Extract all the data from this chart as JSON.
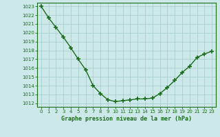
{
  "x": [
    0,
    1,
    2,
    3,
    4,
    5,
    6,
    7,
    8,
    9,
    10,
    11,
    12,
    13,
    14,
    15,
    16,
    17,
    18,
    19,
    20,
    21,
    22,
    23
  ],
  "y": [
    1023.0,
    1021.7,
    1020.6,
    1019.5,
    1018.3,
    1017.0,
    1015.8,
    1014.0,
    1013.1,
    1012.4,
    1012.2,
    1012.3,
    1012.4,
    1012.5,
    1012.5,
    1012.6,
    1013.1,
    1013.8,
    1014.6,
    1015.5,
    1016.2,
    1017.2,
    1017.6,
    1017.9
  ],
  "line_color": "#1a6b1a",
  "marker": "+",
  "marker_color": "#1a6b1a",
  "bg_color": "#cce8e8",
  "grid_color": "#aad0d0",
  "xlabel": "Graphe pression niveau de la mer (hPa)",
  "xlabel_color": "#1a6b1a",
  "tick_color": "#1a6b1a",
  "ytick_min": 1012,
  "ytick_max": 1023,
  "xtick_min": 0,
  "xtick_max": 23,
  "linewidth": 1.0,
  "markersize": 4
}
